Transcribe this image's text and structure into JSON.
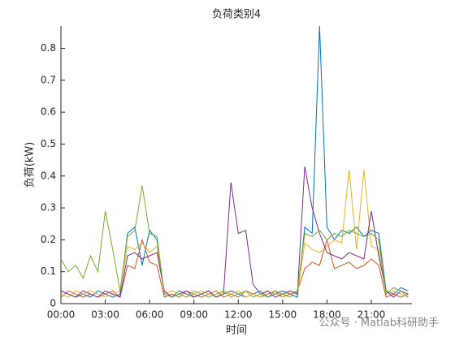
{
  "chart_data": {
    "type": "line",
    "title": "负荷类别4",
    "xlabel": "时间",
    "ylabel": "负荷(kW)",
    "x": [
      0,
      0.5,
      1,
      1.5,
      2,
      2.5,
      3,
      3.5,
      4,
      4.5,
      5,
      5.5,
      6,
      6.5,
      7,
      7.5,
      8,
      8.5,
      9,
      9.5,
      10,
      10.5,
      11,
      11.5,
      12,
      12.5,
      13,
      13.5,
      14,
      14.5,
      15,
      15.5,
      16,
      16.5,
      17,
      17.5,
      18,
      18.5,
      19,
      19.5,
      20,
      20.5,
      21,
      21.5,
      22,
      22.5,
      23,
      23.5
    ],
    "series": [
      {
        "color": "#0072BD",
        "values": [
          0.04,
          0.03,
          0.02,
          0.03,
          0.02,
          0.04,
          0.03,
          0.02,
          0.03,
          0.22,
          0.24,
          0.12,
          0.23,
          0.2,
          0.03,
          0.02,
          0.04,
          0.03,
          0.02,
          0.03,
          0.04,
          0.02,
          0.03,
          0.04,
          0.03,
          0.02,
          0.03,
          0.04,
          0.02,
          0.03,
          0.04,
          0.03,
          0.02,
          0.24,
          0.22,
          0.87,
          0.24,
          0.2,
          0.23,
          0.22,
          0.24,
          0.21,
          0.23,
          0.22,
          0.04,
          0.03,
          0.05,
          0.04
        ]
      },
      {
        "color": "#D95319",
        "values": [
          0.02,
          0.04,
          0.03,
          0.02,
          0.03,
          0.02,
          0.03,
          0.04,
          0.02,
          0.12,
          0.11,
          0.2,
          0.13,
          0.12,
          0.02,
          0.03,
          0.02,
          0.04,
          0.03,
          0.02,
          0.03,
          0.04,
          0.02,
          0.03,
          0.02,
          0.04,
          0.03,
          0.02,
          0.03,
          0.04,
          0.02,
          0.03,
          0.04,
          0.11,
          0.13,
          0.12,
          0.2,
          0.11,
          0.12,
          0.13,
          0.11,
          0.12,
          0.14,
          0.12,
          0.02,
          0.03,
          0.02,
          0.03
        ]
      },
      {
        "color": "#EDB120",
        "values": [
          0.03,
          0.02,
          0.04,
          0.03,
          0.04,
          0.03,
          0.02,
          0.03,
          0.04,
          0.18,
          0.17,
          0.19,
          0.16,
          0.18,
          0.03,
          0.04,
          0.03,
          0.02,
          0.03,
          0.04,
          0.03,
          0.02,
          0.04,
          0.03,
          0.04,
          0.02,
          0.03,
          0.02,
          0.04,
          0.03,
          0.02,
          0.04,
          0.03,
          0.19,
          0.17,
          0.16,
          0.18,
          0.2,
          0.19,
          0.42,
          0.17,
          0.42,
          0.18,
          0.17,
          0.03,
          0.04,
          0.03,
          0.02
        ]
      },
      {
        "color": "#7E2F8E",
        "values": [
          0.04,
          0.03,
          0.02,
          0.04,
          0.03,
          0.02,
          0.04,
          0.03,
          0.02,
          0.15,
          0.16,
          0.14,
          0.15,
          0.16,
          0.04,
          0.02,
          0.03,
          0.04,
          0.02,
          0.03,
          0.04,
          0.02,
          0.03,
          0.38,
          0.22,
          0.23,
          0.06,
          0.03,
          0.04,
          0.02,
          0.03,
          0.04,
          0.03,
          0.43,
          0.3,
          0.22,
          0.16,
          0.15,
          0.14,
          0.16,
          0.15,
          0.14,
          0.29,
          0.15,
          0.04,
          0.02,
          0.04,
          0.03
        ]
      },
      {
        "color": "#77AC30",
        "values": [
          0.14,
          0.1,
          0.12,
          0.08,
          0.15,
          0.1,
          0.29,
          0.17,
          0.04,
          0.21,
          0.23,
          0.37,
          0.22,
          0.21,
          0.03,
          0.02,
          0.03,
          0.02,
          0.04,
          0.03,
          0.02,
          0.03,
          0.04,
          0.02,
          0.03,
          0.04,
          0.02,
          0.03,
          0.02,
          0.04,
          0.03,
          0.02,
          0.04,
          0.22,
          0.21,
          0.23,
          0.2,
          0.22,
          0.21,
          0.23,
          0.22,
          0.21,
          0.22,
          0.2,
          0.03,
          0.05,
          0.04,
          0.02
        ]
      }
    ],
    "xlim": [
      0,
      23.75
    ],
    "xticks": [
      {
        "value": 0,
        "label": "00:00"
      },
      {
        "value": 3,
        "label": "03:00"
      },
      {
        "value": 6,
        "label": "06:00"
      },
      {
        "value": 9,
        "label": "09:00"
      },
      {
        "value": 12,
        "label": "12:00"
      },
      {
        "value": 15,
        "label": "15:00"
      },
      {
        "value": 18,
        "label": "18:00"
      },
      {
        "value": 21,
        "label": "21:00"
      }
    ],
    "ylim": [
      0,
      0.87
    ],
    "yticks": [
      0,
      0.1,
      0.2,
      0.3,
      0.4,
      0.5,
      0.6,
      0.7,
      0.8
    ]
  },
  "watermark": "公众号 · Matlab科研助手"
}
